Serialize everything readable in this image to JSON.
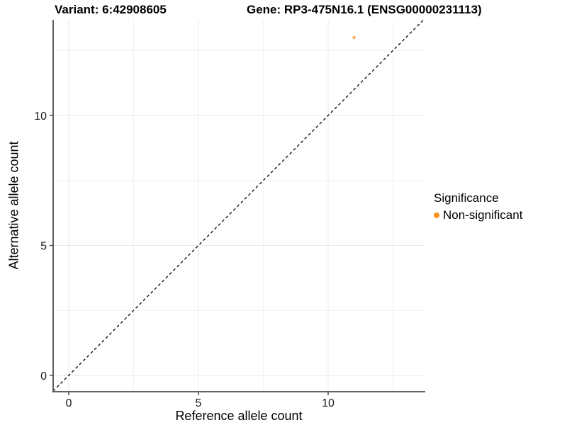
{
  "titles": {
    "variant": "Variant: 6:42908605",
    "gene": "Gene: RP3-475N16.1 (ENSG00000231113)"
  },
  "chart_data": {
    "type": "scatter",
    "title": "Variant: 6:42908605  Gene: RP3-475N16.1 (ENSG00000231113)",
    "xlabel": "Reference allele count",
    "ylabel": "Alternative allele count",
    "x_ticks": [
      0,
      5,
      10
    ],
    "y_ticks": [
      0,
      5,
      10
    ],
    "x_minor_ticks": [
      2.5,
      7.5,
      12.5
    ],
    "y_minor_ticks": [
      2.5,
      7.5,
      12.5
    ],
    "xlim": [
      -0.6,
      13.7
    ],
    "ylim": [
      -0.6,
      13.7
    ],
    "grid": true,
    "points": [
      {
        "x": 11,
        "y": 13,
        "series": "Non-significant"
      }
    ],
    "reference_line": {
      "type": "identity y=x",
      "style": "dashed",
      "color": "#000000"
    },
    "legend": {
      "position": "right",
      "title": "Significance",
      "entries": [
        {
          "label": "Non-significant",
          "color": "#F7941E"
        }
      ]
    },
    "colors": {
      "point": "#F7941E",
      "point_opacity": 0.75,
      "grid_major": "#E8E8E8",
      "grid_minor": "#F1F1F1",
      "axis_line": "#4D4D4D"
    }
  }
}
